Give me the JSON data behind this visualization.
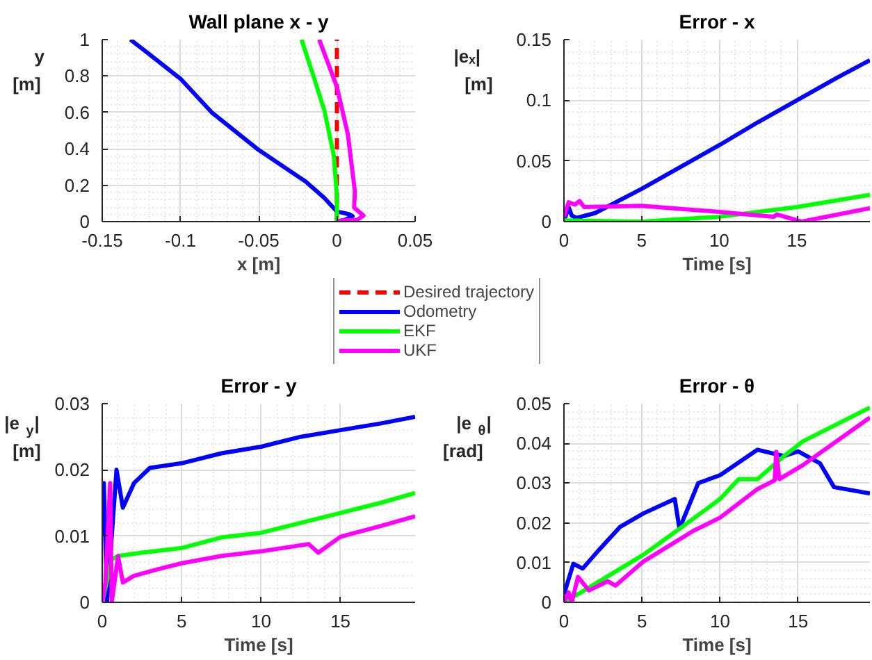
{
  "chart_data": [
    {
      "type": "line",
      "title": "Wall plane x - y",
      "xlabel": "x [m]",
      "ylabel": "y [m]",
      "xlim": [
        -0.15,
        0.05
      ],
      "ylim": [
        0,
        1
      ],
      "xticks": [
        -0.15,
        -0.1,
        -0.05,
        0,
        0.05
      ],
      "yticks": [
        0,
        0.2,
        0.4,
        0.6,
        0.8,
        1
      ],
      "grid": true,
      "legend": "bottom",
      "series": [
        {
          "name": "Desired trajectory",
          "color": "#ff0000",
          "line_style": "dashed",
          "x": [
            0,
            0
          ],
          "values": [
            0,
            1
          ]
        },
        {
          "name": "Odometry",
          "color": "#0000ff",
          "x": [
            0,
            0.005,
            0.01,
            0.008,
            0.003,
            0,
            -0.008,
            -0.02,
            -0.051,
            -0.08,
            -0.1,
            -0.12,
            -0.132
          ],
          "values": [
            0,
            0.01,
            0.03,
            0.04,
            0.05,
            0.055,
            0.13,
            0.22,
            0.4,
            0.6,
            0.785,
            0.92,
            1
          ]
        },
        {
          "name": "EKF",
          "color": "#00ff00",
          "x": [
            0,
            0,
            -0.002,
            -0.008,
            -0.015,
            -0.0226
          ],
          "values": [
            0,
            0.14,
            0.365,
            0.61,
            0.8,
            1
          ]
        },
        {
          "name": "UKF",
          "color": "#ff00ff",
          "x": [
            0,
            0.004,
            0.013,
            0.017,
            0.011,
            0.0115,
            0.007,
            0,
            -0.0113
          ],
          "values": [
            0,
            0.007,
            0.01,
            0.033,
            0.077,
            0.166,
            0.48,
            0.74,
            1
          ]
        }
      ]
    },
    {
      "type": "line",
      "title": "Error - x",
      "xlabel": "Time [s]",
      "ylabel": "|eₓ| [m]",
      "xlim": [
        0,
        19.7
      ],
      "ylim": [
        0,
        0.15
      ],
      "xticks": [
        0,
        5,
        10,
        15
      ],
      "yticks": [
        0,
        0.05,
        0.1,
        0.15
      ],
      "grid": true,
      "series": [
        {
          "color": "#0000ff",
          "x": [
            0,
            0.3,
            0.5,
            0.8,
            2,
            5,
            7.5,
            10,
            12.5,
            15,
            17.5,
            19.7
          ],
          "values": [
            0,
            0.012,
            0.005,
            0.003,
            0.007,
            0.027,
            0.045,
            0.063,
            0.082,
            0.1,
            0.118,
            0.133
          ]
        },
        {
          "color": "#00ff00",
          "x": [
            0,
            5,
            10,
            15,
            19.7
          ],
          "values": [
            0.001,
            0,
            0.004,
            0.012,
            0.022
          ]
        },
        {
          "color": "#ff00ff",
          "x": [
            0,
            0.3,
            0.7,
            1,
            1.3,
            5,
            10,
            13.5,
            13.7,
            15.3,
            19.7
          ],
          "values": [
            0.004,
            0.016,
            0.014,
            0.017,
            0.012,
            0.013,
            0.008,
            0.004,
            0.006,
            0,
            0.011
          ]
        }
      ]
    },
    {
      "type": "line",
      "title": "Error - y",
      "xlabel": "Time [s]",
      "ylabel": "|e$_{y}$| [m]",
      "xlim": [
        0,
        19.7
      ],
      "ylim": [
        0,
        0.03
      ],
      "xticks": [
        0,
        5,
        10,
        15
      ],
      "yticks": [
        0,
        0.01,
        0.02,
        0.03
      ],
      "grid": true,
      "series": [
        {
          "color": "#0000ff",
          "x": [
            0,
            0.1,
            0.3,
            0.9,
            1.3,
            2,
            3,
            5,
            7.5,
            10,
            12.5,
            15,
            17.5,
            19.7
          ],
          "values": [
            0.01,
            0.018,
            0,
            0.02,
            0.0143,
            0.018,
            0.0203,
            0.021,
            0.0225,
            0.0235,
            0.025,
            0.026,
            0.027,
            0.028
          ]
        },
        {
          "color": "#00ff00",
          "x": [
            0,
            0.6,
            1,
            2.5,
            5,
            7.5,
            10,
            12.5,
            15,
            17.5,
            19.7
          ],
          "values": [
            0,
            0.0065,
            0.007,
            0.0075,
            0.0082,
            0.0098,
            0.0105,
            0.012,
            0.0135,
            0.015,
            0.0165
          ]
        },
        {
          "color": "#ff00ff",
          "x": [
            0,
            0.2,
            0.5,
            0.6,
            1,
            1.3,
            2,
            3.5,
            5,
            7.5,
            10,
            13,
            13.6,
            15,
            17.5,
            19.7
          ],
          "values": [
            0,
            0.003,
            0.018,
            0,
            0.007,
            0.003,
            0.004,
            0.005,
            0.0059,
            0.007,
            0.0077,
            0.0088,
            0.0075,
            0.0099,
            0.0115,
            0.013
          ]
        }
      ]
    },
    {
      "type": "line",
      "title": "Error - θ",
      "xlabel": "Time [s]",
      "ylabel": "|e$_{θ}$| [rad]",
      "xlim": [
        0,
        19.6
      ],
      "ylim": [
        0,
        0.05
      ],
      "xticks": [
        0,
        5,
        10,
        15
      ],
      "yticks": [
        0,
        0.01,
        0.02,
        0.03,
        0.04,
        0.05
      ],
      "grid": true,
      "series": [
        {
          "color": "#0000ff",
          "x": [
            0,
            0.6,
            1.2,
            2.2,
            3.6,
            5.1,
            7.1,
            7.4,
            8.6,
            10,
            12.4,
            14.1,
            15,
            16.4,
            17.3,
            19.6
          ],
          "values": [
            0.002,
            0.0097,
            0.0085,
            0.013,
            0.019,
            0.0224,
            0.026,
            0.0185,
            0.03,
            0.032,
            0.0384,
            0.0368,
            0.038,
            0.035,
            0.029,
            0.0274
          ]
        },
        {
          "color": "#00ff00",
          "x": [
            0,
            1.3,
            5.1,
            7.4,
            10,
            11.2,
            12.4,
            14.1,
            15.3,
            19.6
          ],
          "values": [
            0,
            0.003,
            0.012,
            0.0185,
            0.026,
            0.031,
            0.031,
            0.0368,
            0.0405,
            0.049
          ]
        },
        {
          "color": "#ff00ff",
          "x": [
            0,
            0.3,
            0.5,
            0.9,
            1.6,
            2.8,
            3.3,
            5.1,
            8.3,
            10,
            12.4,
            13.5,
            13.6,
            13.8,
            15.3,
            19.6
          ],
          "values": [
            0,
            0.0025,
            0,
            0.0064,
            0.003,
            0.0053,
            0.0042,
            0.0103,
            0.018,
            0.0213,
            0.0285,
            0.0307,
            0.0379,
            0.031,
            0.0345,
            0.0465
          ]
        }
      ]
    }
  ]
}
